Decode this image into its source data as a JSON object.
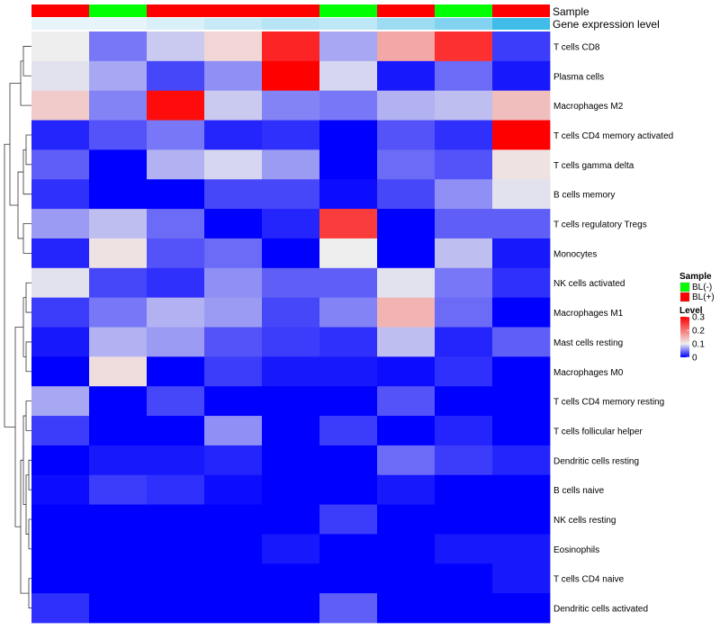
{
  "chart_data": {
    "type": "heatmap",
    "title": "",
    "annotation_rows": [
      {
        "label": "Sample",
        "values": [
          "BL(+)",
          "BL(-)",
          "BL(+)",
          "BL(+)",
          "BL(+)",
          "BL(-)",
          "BL(+)",
          "BL(-)",
          "BL(+)"
        ]
      },
      {
        "label": "Gene expression level",
        "values": [
          0.02,
          0.02,
          0.1,
          0.2,
          0.3,
          0.25,
          0.45,
          0.6,
          1.0
        ]
      }
    ],
    "rows": [
      "T cells CD8",
      "Plasma cells",
      "Macrophages M2",
      "T cells CD4 memory activated",
      "T cells gamma delta",
      "B cells memory",
      "T cells regulatory  Tregs",
      "Monocytes",
      "NK cells activated",
      "Macrophages M1",
      "Mast cells resting",
      "Macrophages M0",
      "T cells CD4 memory resting",
      "T cells follicular helper",
      "Dendritic cells resting",
      "B cells naive",
      "NK cells resting",
      "Eosinophils",
      "T cells CD4 naive",
      "Dendritic cells activated"
    ],
    "values": [
      [
        0.1,
        0.05,
        0.085,
        0.12,
        0.27,
        0.07,
        0.16,
        0.26,
        0.025
      ],
      [
        0.095,
        0.07,
        0.03,
        0.06,
        0.3,
        0.09,
        0.01,
        0.045,
        0.01
      ],
      [
        0.13,
        0.055,
        0.29,
        0.085,
        0.055,
        0.05,
        0.075,
        0.08,
        0.14
      ],
      [
        0.015,
        0.035,
        0.05,
        0.015,
        0.02,
        0.0,
        0.035,
        0.02,
        0.3
      ],
      [
        0.04,
        0.0,
        0.075,
        0.09,
        0.065,
        0.0,
        0.045,
        0.035,
        0.11
      ],
      [
        0.02,
        0.0,
        0.0,
        0.03,
        0.03,
        0.005,
        0.03,
        0.06,
        0.095
      ],
      [
        0.065,
        0.08,
        0.045,
        0.0,
        0.015,
        0.25,
        0.0,
        0.04,
        0.04
      ],
      [
        0.015,
        0.11,
        0.035,
        0.045,
        0.0,
        0.1,
        0.0,
        0.08,
        0.01
      ],
      [
        0.095,
        0.03,
        0.02,
        0.06,
        0.04,
        0.04,
        0.095,
        0.05,
        0.02
      ],
      [
        0.025,
        0.05,
        0.075,
        0.065,
        0.03,
        0.055,
        0.15,
        0.045,
        0.0
      ],
      [
        0.01,
        0.075,
        0.065,
        0.035,
        0.025,
        0.02,
        0.08,
        0.015,
        0.04
      ],
      [
        0.0,
        0.115,
        0.0,
        0.025,
        0.01,
        0.01,
        0.005,
        0.02,
        0.0
      ],
      [
        0.07,
        0.0,
        0.03,
        0.0,
        0.0,
        0.0,
        0.035,
        0.0,
        0.0
      ],
      [
        0.025,
        0.0,
        0.0,
        0.06,
        0.0,
        0.025,
        0.0,
        0.015,
        0.0
      ],
      [
        0.0,
        0.01,
        0.01,
        0.015,
        0.0,
        0.0,
        0.045,
        0.025,
        0.015
      ],
      [
        0.005,
        0.025,
        0.02,
        0.005,
        0.0,
        0.0,
        0.01,
        0.0,
        0.0
      ],
      [
        0.0,
        0.0,
        0.0,
        0.0,
        0.0,
        0.025,
        0.0,
        0.0,
        0.0
      ],
      [
        0.0,
        0.0,
        0.0,
        0.0,
        0.01,
        0.0,
        0.0,
        0.01,
        0.01
      ],
      [
        0.0,
        0.0,
        0.0,
        0.0,
        0.0,
        0.0,
        0.0,
        0.0,
        0.01
      ],
      [
        0.02,
        0.0,
        0.0,
        0.0,
        0.0,
        0.04,
        0.0,
        0.0,
        0.0
      ]
    ],
    "color_scale": {
      "min": 0,
      "max": 0.3,
      "stops": [
        {
          "value": 0,
          "color": "#0000ff"
        },
        {
          "value": 0.1,
          "color": "#eeeeee"
        },
        {
          "value": 0.3,
          "color": "#ff0000"
        }
      ]
    },
    "legend": {
      "sample_title": "Sample",
      "sample_entries": [
        {
          "label": "BL(-)",
          "color": "#00ff00"
        },
        {
          "label": "BL(+)",
          "color": "#ff0000"
        }
      ],
      "level_title": "Level",
      "level_ticks": [
        "0.3",
        "0.2",
        "0.1",
        "0"
      ],
      "placement": "right"
    },
    "dendrogram": "rows-left",
    "annotation_colors": {
      "BL(+)": "#ff0000",
      "BL(-)": "#00ff00",
      "expr_low": "#eaf6fb",
      "expr_high": "#3fbce8"
    }
  }
}
